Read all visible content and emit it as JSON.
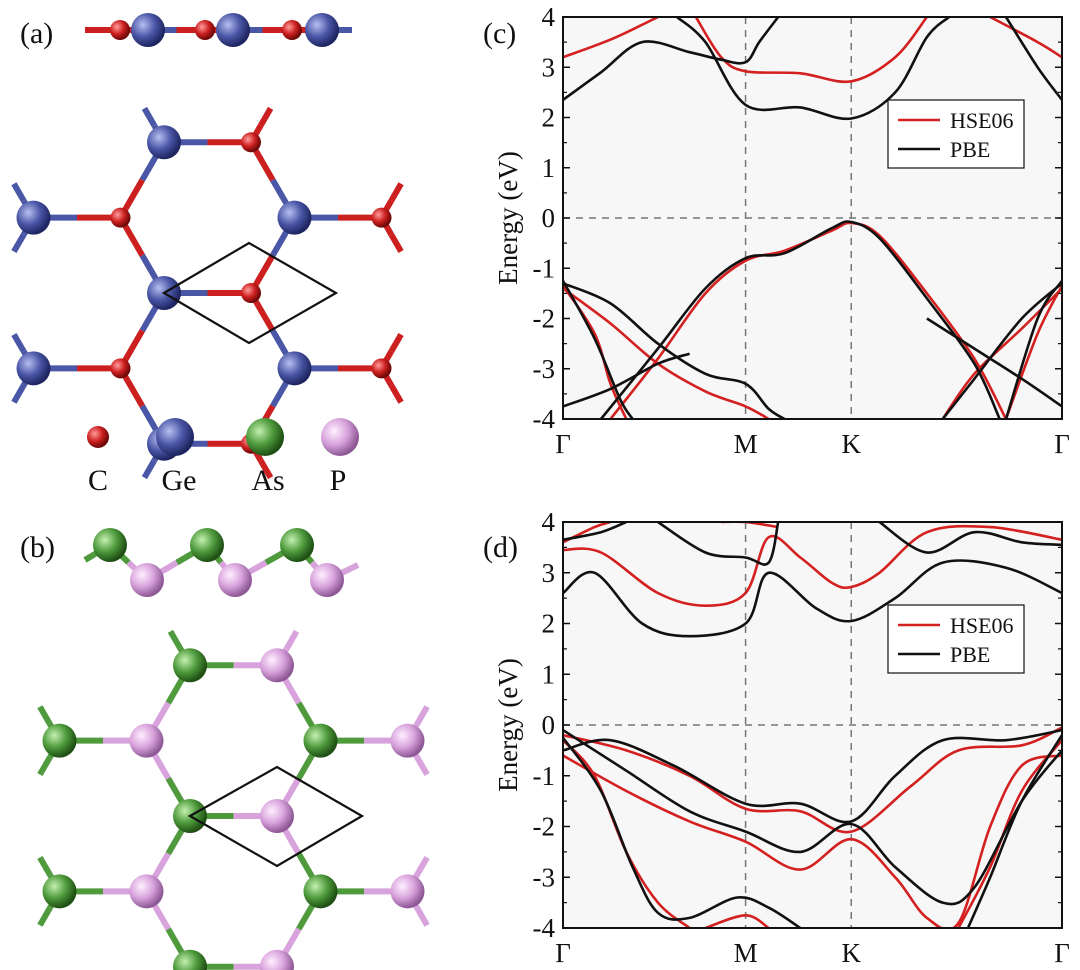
{
  "figure": {
    "panel_a_label": "(a)",
    "panel_b_label": "(b)",
    "panel_c_label": "(c)",
    "panel_d_label": "(d)",
    "elements": [
      {
        "symbol": "C",
        "color": "#cc1f1f"
      },
      {
        "symbol": "Ge",
        "color": "#4a56a6"
      },
      {
        "symbol": "As",
        "color": "#4e9a3c"
      },
      {
        "symbol": "P",
        "color": "#d8a2dc"
      }
    ],
    "colors": {
      "hse": "#d42020",
      "pbe": "#111111",
      "C": "#cc1f1f",
      "Ge": "#4a56a6",
      "As": "#4e9a3c",
      "P": "#d8a2dc"
    }
  },
  "chart_data": [
    {
      "type": "line",
      "panel": "(c)",
      "ylabel": "Energy (eV)",
      "ylim": [
        -4,
        4
      ],
      "yticks": [
        "4",
        "3",
        "2",
        "1",
        "0",
        "-1",
        "-2",
        "-3",
        "-4"
      ],
      "kpoints": [
        "Γ",
        "M",
        "K",
        "Γ"
      ],
      "kpoint_positions": [
        0,
        0.577,
        0.911,
        1.577
      ],
      "xlim": [
        0,
        1.577
      ],
      "legend": {
        "position": "upper-right",
        "entries": [
          "HSE06",
          "PBE"
        ]
      },
      "series": [
        {
          "name": "HSE06",
          "color": "#d42020",
          "bands": [
            [
              [
                0,
                3.2
              ],
              [
                0.15,
                3.55
              ],
              [
                0.3,
                4.0
              ]
            ],
            [
              [
                0.42,
                4.0
              ],
              [
                0.5,
                3.2
              ],
              [
                0.577,
                2.92
              ],
              [
                0.75,
                2.88
              ],
              [
                0.911,
                2.72
              ],
              [
                1.05,
                3.2
              ],
              [
                1.15,
                4.0
              ]
            ],
            [
              [
                1.35,
                4.0
              ],
              [
                1.5,
                3.5
              ],
              [
                1.577,
                3.2
              ]
            ],
            [
              [
                0,
                -1.35
              ],
              [
                0.1,
                -2.3
              ],
              [
                0.15,
                -3.3
              ],
              [
                0.2,
                -4.0
              ]
            ],
            [
              [
                0.15,
                -4.0
              ],
              [
                0.3,
                -2.8
              ],
              [
                0.45,
                -1.5
              ],
              [
                0.577,
                -0.85
              ],
              [
                0.7,
                -0.65
              ],
              [
                0.85,
                -0.25
              ],
              [
                0.911,
                -0.1
              ],
              [
                1.0,
                -0.35
              ],
              [
                1.15,
                -1.5
              ],
              [
                1.3,
                -2.8
              ],
              [
                1.4,
                -4.0
              ]
            ],
            [
              [
                0,
                -1.4
              ],
              [
                0.15,
                -2.1
              ],
              [
                0.3,
                -2.9
              ],
              [
                0.45,
                -3.45
              ],
              [
                0.577,
                -3.75
              ],
              [
                0.65,
                -4.0
              ]
            ],
            [
              [
                1.4,
                -4.0
              ],
              [
                1.5,
                -2.3
              ],
              [
                1.577,
                -1.35
              ]
            ],
            [
              [
                1.577,
                -1.4
              ],
              [
                1.45,
                -2.2
              ],
              [
                1.3,
                -3.1
              ],
              [
                1.2,
                -4.0
              ]
            ]
          ]
        },
        {
          "name": "PBE",
          "color": "#111111",
          "bands": [
            [
              [
                0,
                2.35
              ],
              [
                0.12,
                2.9
              ],
              [
                0.25,
                3.5
              ],
              [
                0.4,
                3.3
              ],
              [
                0.5,
                3.15
              ],
              [
                0.577,
                3.1
              ],
              [
                0.62,
                3.5
              ],
              [
                0.68,
                4.0
              ]
            ],
            [
              [
                0.36,
                4.0
              ],
              [
                0.45,
                3.5
              ],
              [
                0.577,
                2.25
              ],
              [
                0.75,
                2.2
              ],
              [
                0.911,
                1.98
              ],
              [
                1.05,
                2.5
              ],
              [
                1.15,
                3.6
              ],
              [
                1.22,
                4.0
              ]
            ],
            [
              [
                1.4,
                4.0
              ],
              [
                1.5,
                3.0
              ],
              [
                1.577,
                2.35
              ]
            ],
            [
              [
                0,
                -1.25
              ],
              [
                0.1,
                -2.4
              ],
              [
                0.18,
                -3.6
              ],
              [
                0.22,
                -4.0
              ]
            ],
            [
              [
                0.12,
                -4.0
              ],
              [
                0.3,
                -2.6
              ],
              [
                0.45,
                -1.4
              ],
              [
                0.577,
                -0.8
              ],
              [
                0.7,
                -0.7
              ],
              [
                0.85,
                -0.2
              ],
              [
                0.911,
                -0.08
              ],
              [
                1.0,
                -0.4
              ],
              [
                1.15,
                -1.6
              ],
              [
                1.3,
                -2.9
              ],
              [
                1.38,
                -4.0
              ]
            ],
            [
              [
                0,
                -1.3
              ],
              [
                0.15,
                -1.7
              ],
              [
                0.3,
                -2.5
              ],
              [
                0.45,
                -3.1
              ],
              [
                0.577,
                -3.3
              ],
              [
                0.65,
                -3.8
              ],
              [
                0.7,
                -4.0
              ]
            ],
            [
              [
                0,
                -3.75
              ],
              [
                0.15,
                -3.4
              ],
              [
                0.3,
                -2.9
              ],
              [
                0.4,
                -2.7
              ]
            ],
            [
              [
                1.4,
                -4.0
              ],
              [
                1.5,
                -2.0
              ],
              [
                1.577,
                -1.25
              ]
            ],
            [
              [
                1.577,
                -3.75
              ],
              [
                1.45,
                -3.2
              ],
              [
                1.3,
                -2.6
              ],
              [
                1.15,
                -2.0
              ]
            ],
            [
              [
                1.577,
                -1.3
              ],
              [
                1.45,
                -2.0
              ],
              [
                1.3,
                -3.2
              ],
              [
                1.2,
                -4.0
              ]
            ]
          ]
        }
      ]
    },
    {
      "type": "line",
      "panel": "(d)",
      "ylabel": "Energy (eV)",
      "ylim": [
        -4,
        4
      ],
      "yticks": [
        "4",
        "3",
        "2",
        "1",
        "0",
        "-1",
        "-2",
        "-3",
        "-4"
      ],
      "kpoints": [
        "Γ",
        "M",
        "K",
        "Γ"
      ],
      "kpoint_positions": [
        0,
        0.577,
        0.911,
        1.577
      ],
      "xlim": [
        0,
        1.577
      ],
      "legend": {
        "position": "upper-right",
        "entries": [
          "HSE06",
          "PBE"
        ]
      },
      "series": [
        {
          "name": "HSE06",
          "color": "#d42020",
          "bands": [
            [
              [
                0,
                3.45
              ],
              [
                0.12,
                3.4
              ],
              [
                0.3,
                2.6
              ],
              [
                0.45,
                2.35
              ],
              [
                0.577,
                2.6
              ],
              [
                0.65,
                3.7
              ],
              [
                0.75,
                3.3
              ],
              [
                0.85,
                2.8
              ],
              [
                0.911,
                2.72
              ],
              [
                1.0,
                3.0
              ],
              [
                1.15,
                3.8
              ],
              [
                1.35,
                3.9
              ],
              [
                1.577,
                3.65
              ]
            ],
            [
              [
                0,
                3.6
              ],
              [
                0.1,
                3.9
              ],
              [
                0.15,
                4.0
              ]
            ],
            [
              [
                0.5,
                4.0
              ],
              [
                0.577,
                4.0
              ],
              [
                0.68,
                3.9
              ]
            ],
            [
              [
                0,
                -0.2
              ],
              [
                0.2,
                -0.5
              ],
              [
                0.4,
                -1.0
              ],
              [
                0.577,
                -1.65
              ],
              [
                0.75,
                -1.7
              ],
              [
                0.911,
                -2.1
              ],
              [
                1.1,
                -1.2
              ],
              [
                1.25,
                -0.5
              ],
              [
                1.45,
                -0.4
              ],
              [
                1.577,
                -0.05
              ]
            ],
            [
              [
                0,
                -0.6
              ],
              [
                0.2,
                -1.3
              ],
              [
                0.4,
                -1.9
              ],
              [
                0.577,
                -2.3
              ],
              [
                0.75,
                -2.85
              ],
              [
                0.911,
                -2.25
              ],
              [
                1.05,
                -3.0
              ],
              [
                1.15,
                -3.8
              ],
              [
                1.25,
                -3.9
              ],
              [
                1.35,
                -2.0
              ],
              [
                1.45,
                -0.8
              ],
              [
                1.577,
                -0.6
              ]
            ],
            [
              [
                0,
                -0.3
              ],
              [
                0.1,
                -1.0
              ],
              [
                0.2,
                -2.5
              ],
              [
                0.3,
                -3.5
              ],
              [
                0.4,
                -4.0
              ]
            ],
            [
              [
                0.45,
                -4.0
              ],
              [
                0.577,
                -3.75
              ],
              [
                0.65,
                -4.0
              ]
            ],
            [
              [
                1.577,
                -0.3
              ],
              [
                1.45,
                -1.3
              ],
              [
                1.35,
                -2.8
              ],
              [
                1.25,
                -4.0
              ]
            ]
          ]
        },
        {
          "name": "PBE",
          "color": "#111111",
          "bands": [
            [
              [
                0,
                2.6
              ],
              [
                0.1,
                3.0
              ],
              [
                0.25,
                2.0
              ],
              [
                0.4,
                1.75
              ],
              [
                0.577,
                2.0
              ],
              [
                0.65,
                3.0
              ],
              [
                0.8,
                2.3
              ],
              [
                0.911,
                2.05
              ],
              [
                1.05,
                2.5
              ],
              [
                1.2,
                3.2
              ],
              [
                1.4,
                3.1
              ],
              [
                1.577,
                2.6
              ]
            ],
            [
              [
                0,
                3.65
              ],
              [
                0.12,
                3.8
              ],
              [
                0.2,
                4.0
              ]
            ],
            [
              [
                0.3,
                4.0
              ],
              [
                0.45,
                3.4
              ],
              [
                0.577,
                3.3
              ],
              [
                0.65,
                3.2
              ],
              [
                0.68,
                4.0
              ]
            ],
            [
              [
                1.0,
                4.0
              ],
              [
                1.15,
                3.4
              ],
              [
                1.3,
                3.8
              ],
              [
                1.45,
                3.6
              ],
              [
                1.577,
                3.55
              ]
            ],
            [
              [
                0,
                -0.5
              ],
              [
                0.15,
                -0.3
              ],
              [
                0.35,
                -0.8
              ],
              [
                0.577,
                -1.55
              ],
              [
                0.75,
                -1.55
              ],
              [
                0.911,
                -1.9
              ],
              [
                1.05,
                -1.0
              ],
              [
                1.2,
                -0.3
              ],
              [
                1.4,
                -0.3
              ],
              [
                1.577,
                -0.1
              ]
            ],
            [
              [
                0,
                -0.1
              ],
              [
                0.2,
                -0.9
              ],
              [
                0.4,
                -1.7
              ],
              [
                0.577,
                -2.1
              ],
              [
                0.75,
                -2.5
              ],
              [
                0.911,
                -1.95
              ],
              [
                1.05,
                -2.8
              ],
              [
                1.2,
                -3.5
              ],
              [
                1.3,
                -3.2
              ],
              [
                1.45,
                -1.5
              ],
              [
                1.577,
                -0.5
              ]
            ],
            [
              [
                0,
                -0.25
              ],
              [
                0.12,
                -1.3
              ],
              [
                0.22,
                -2.8
              ],
              [
                0.3,
                -3.7
              ],
              [
                0.4,
                -3.8
              ],
              [
                0.55,
                -3.4
              ],
              [
                0.65,
                -3.6
              ],
              [
                0.75,
                -4.0
              ]
            ],
            [
              [
                1.577,
                -0.2
              ],
              [
                1.45,
                -1.5
              ],
              [
                1.35,
                -3.0
              ],
              [
                1.28,
                -4.0
              ]
            ]
          ]
        }
      ]
    }
  ]
}
